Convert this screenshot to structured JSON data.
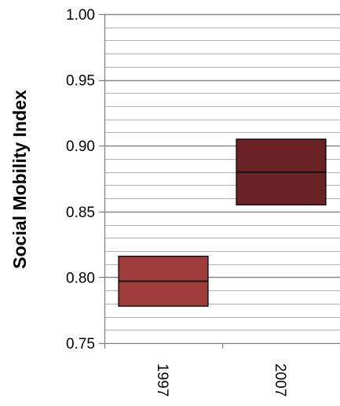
{
  "chart_data": {
    "type": "box",
    "title": "",
    "xlabel": "",
    "ylabel": "Social Mobility Index",
    "categories": [
      "1997",
      "2007"
    ],
    "boxes": [
      {
        "category": "1997",
        "low": 0.778,
        "median": 0.797,
        "high": 0.816,
        "color": "#9e3b3b"
      },
      {
        "category": "2007",
        "low": 0.855,
        "median": 0.88,
        "high": 0.905,
        "color": "#6b2224"
      }
    ],
    "ylim": [
      0.75,
      1.0
    ],
    "yticks": [
      "0.75",
      "0.80",
      "0.85",
      "0.90",
      "0.95",
      "1.00"
    ],
    "minor_step": 0.01,
    "grid": true,
    "legend": "none"
  }
}
